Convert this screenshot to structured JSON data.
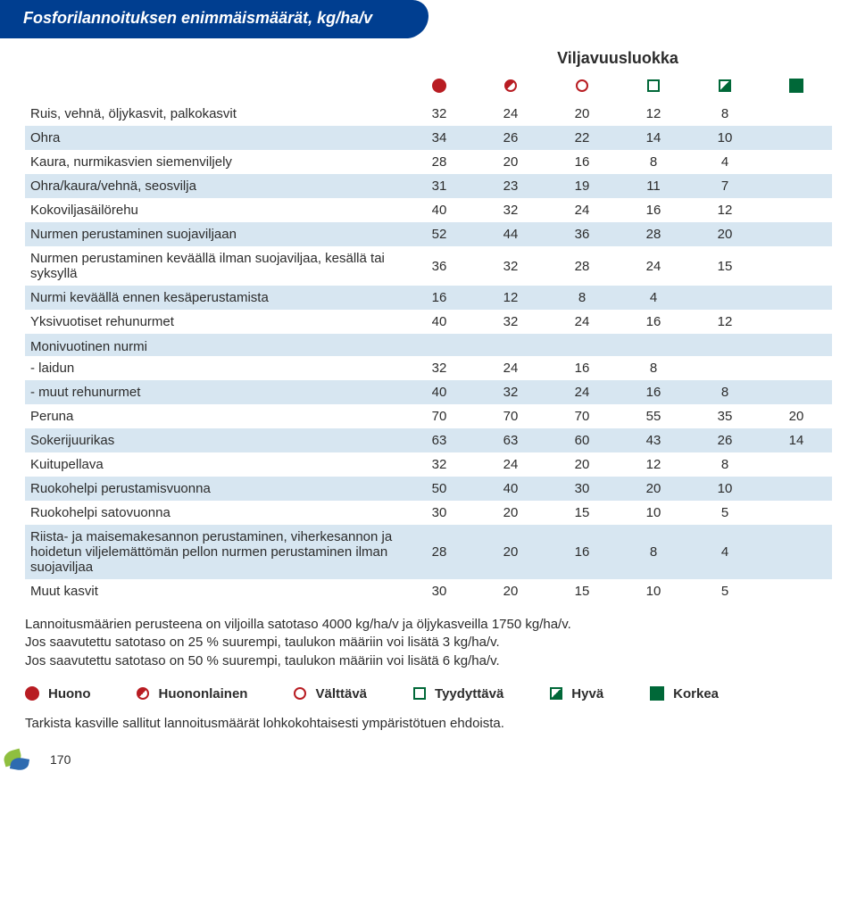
{
  "header": {
    "title": "Fosforilannoituksen enimmäismäärät, kg/ha/v"
  },
  "table": {
    "super_header": "Viljavuusluokka",
    "symbol_colors": {
      "red": "#b81c22",
      "green": "#006838"
    },
    "symbols": [
      "circle-full",
      "circle-half",
      "circle-empty",
      "square-empty",
      "square-tri",
      "square-full"
    ],
    "rows": [
      {
        "label": "Ruis, vehnä, öljykasvit, palkokasvit",
        "vals": [
          "32",
          "24",
          "20",
          "12",
          "8",
          ""
        ]
      },
      {
        "label": "Ohra",
        "vals": [
          "34",
          "26",
          "22",
          "14",
          "10",
          ""
        ]
      },
      {
        "label": "Kaura, nurmikasvien siemenviljely",
        "vals": [
          "28",
          "20",
          "16",
          "8",
          "4",
          ""
        ]
      },
      {
        "label": "Ohra/kaura/vehnä, seosvilja",
        "vals": [
          "31",
          "23",
          "19",
          "11",
          "7",
          ""
        ]
      },
      {
        "label": "Kokoviljasäilörehu",
        "vals": [
          "40",
          "32",
          "24",
          "16",
          "12",
          ""
        ]
      },
      {
        "label": "Nurmen perustaminen suojaviljaan",
        "vals": [
          "52",
          "44",
          "36",
          "28",
          "20",
          ""
        ]
      },
      {
        "label": "Nurmen perustaminen keväällä ilman suojaviljaa, kesällä tai syksyllä",
        "vals": [
          "36",
          "32",
          "28",
          "24",
          "15",
          ""
        ]
      },
      {
        "label": "Nurmi keväällä ennen kesäperustamista",
        "vals": [
          "16",
          "12",
          "8",
          "4",
          "",
          ""
        ]
      },
      {
        "label": "Yksivuotiset rehunurmet",
        "vals": [
          "40",
          "32",
          "24",
          "16",
          "12",
          ""
        ]
      },
      {
        "label": "Monivuotinen nurmi",
        "vals": [
          "",
          "",
          "",
          "",
          "",
          ""
        ],
        "section": true
      },
      {
        "label": "- laidun",
        "vals": [
          "32",
          "24",
          "16",
          "8",
          "",
          ""
        ]
      },
      {
        "label": "- muut rehunurmet",
        "vals": [
          "40",
          "32",
          "24",
          "16",
          "8",
          ""
        ]
      },
      {
        "label": "Peruna",
        "vals": [
          "70",
          "70",
          "70",
          "55",
          "35",
          "20"
        ]
      },
      {
        "label": "Sokerijuurikas",
        "vals": [
          "63",
          "63",
          "60",
          "43",
          "26",
          "14"
        ]
      },
      {
        "label": "Kuitupellava",
        "vals": [
          "32",
          "24",
          "20",
          "12",
          "8",
          ""
        ]
      },
      {
        "label": "Ruokohelpi perustamisvuonna",
        "vals": [
          "50",
          "40",
          "30",
          "20",
          "10",
          ""
        ]
      },
      {
        "label": "Ruokohelpi satovuonna",
        "vals": [
          "30",
          "20",
          "15",
          "10",
          "5",
          ""
        ]
      },
      {
        "label": "Riista- ja maisemakesannon perustaminen, viherkesannon ja hoidetun viljelemättömän pellon nurmen perustaminen ilman suojaviljaa",
        "vals": [
          "28",
          "20",
          "16",
          "8",
          "4",
          ""
        ]
      },
      {
        "label": "Muut kasvit",
        "vals": [
          "30",
          "20",
          "15",
          "10",
          "5",
          ""
        ]
      }
    ],
    "stripe_color": "#d7e6f1"
  },
  "notes": {
    "line1": "Lannoitusmäärien perusteena on viljoilla satotaso 4000 kg/ha/v ja öljykasveilla 1750 kg/ha/v.",
    "line2": "Jos saavutettu satotaso on 25 % suurempi, taulukon määriin voi lisätä 3 kg/ha/v.",
    "line3": "Jos saavutettu satotaso on 50 % suurempi, taulukon määriin voi lisätä 6 kg/ha/v."
  },
  "legend": {
    "items": [
      {
        "symbol": "circle-full",
        "label": "Huono"
      },
      {
        "symbol": "circle-half",
        "label": "Huononlainen"
      },
      {
        "symbol": "circle-empty",
        "label": "Välttävä"
      },
      {
        "symbol": "square-empty",
        "label": "Tyydyttävä"
      },
      {
        "symbol": "square-tri",
        "label": "Hyvä"
      },
      {
        "symbol": "square-full",
        "label": "Korkea"
      }
    ]
  },
  "footnote": "Tarkista kasville sallitut lannoitusmäärät lohkokohtaisesti ympäristötuen ehdoista.",
  "page_number": "170"
}
